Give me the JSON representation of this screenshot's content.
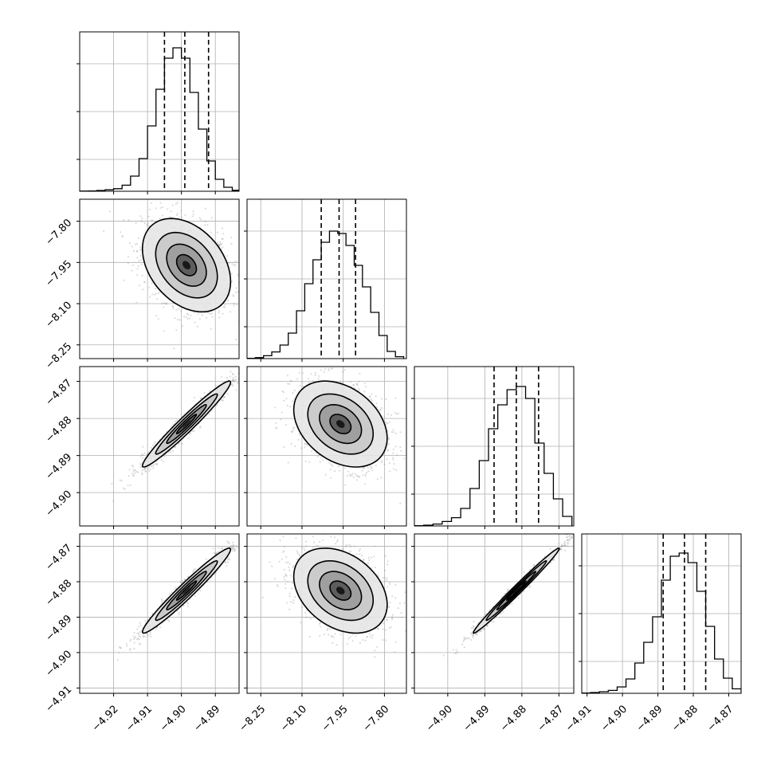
{
  "chart_data": {
    "type": "corner",
    "grid": true,
    "parameters": [
      {
        "lim": [
          -4.93,
          -4.883
        ],
        "ticks": [
          -4.92,
          -4.91,
          -4.9,
          -4.89
        ],
        "tick_labels": [
          "−4.92",
          "−4.91",
          "−4.90",
          "−4.89"
        ],
        "quantiles": [
          -4.905,
          -4.899,
          -4.892
        ]
      },
      {
        "lim": [
          -8.3,
          -7.72
        ],
        "ticks": [
          -8.25,
          -8.1,
          -7.95,
          -7.8
        ],
        "tick_labels": [
          "−8.25",
          "−8.10",
          "−7.95",
          "−7.80"
        ],
        "quantiles": [
          -8.03,
          -7.965,
          -7.905
        ]
      },
      {
        "lim": [
          -4.909,
          -4.866
        ],
        "ticks": [
          -4.9,
          -4.89,
          -4.88,
          -4.87
        ],
        "tick_labels": [
          "−4.90",
          "−4.89",
          "−4.88",
          "−4.87"
        ],
        "quantiles": [
          -4.8875,
          -4.8815,
          -4.8755
        ]
      },
      {
        "lim": [
          -4.9115,
          -4.8665
        ],
        "ticks": [
          -4.91,
          -4.9,
          -4.89,
          -4.88,
          -4.87
        ],
        "tick_labels": [
          "−4.91",
          "−4.90",
          "−4.89",
          "−4.88",
          "−4.87"
        ],
        "quantiles": [
          -4.8885,
          -4.8825,
          -4.8765
        ]
      }
    ],
    "histograms": [
      {
        "edges": [
          -4.93,
          -4.9275,
          -4.925,
          -4.9225,
          -4.92,
          -4.9175,
          -4.915,
          -4.9125,
          -4.91,
          -4.9075,
          -4.905,
          -4.9025,
          -4.9,
          -4.8975,
          -4.895,
          -4.8925,
          -4.89,
          -4.8875,
          -4.885,
          -4.883
        ],
        "counts": [
          1,
          2,
          5,
          9,
          16,
          38,
          95,
          205,
          410,
          640,
          835,
          900,
          835,
          620,
          390,
          190,
          75,
          25,
          6
        ],
        "ylim": [
          0,
          1000
        ]
      },
      {
        "edges": [
          -8.3,
          -8.27,
          -8.24,
          -8.21,
          -8.18,
          -8.15,
          -8.12,
          -8.09,
          -8.06,
          -8.03,
          -8.0,
          -7.97,
          -7.94,
          -7.91,
          -7.88,
          -7.85,
          -7.82,
          -7.79,
          -7.76,
          -7.73
        ],
        "counts": [
          2,
          6,
          18,
          42,
          85,
          160,
          300,
          470,
          620,
          730,
          800,
          785,
          710,
          585,
          450,
          290,
          145,
          45,
          12
        ],
        "ylim": [
          0,
          1000
        ]
      },
      {
        "edges": [
          -4.909,
          -4.9065,
          -4.904,
          -4.9015,
          -4.899,
          -4.8965,
          -4.894,
          -4.8915,
          -4.889,
          -4.8865,
          -4.884,
          -4.8815,
          -4.879,
          -4.8765,
          -4.874,
          -4.8715,
          -4.869,
          -4.8665
        ],
        "counts": [
          2,
          5,
          12,
          28,
          52,
          110,
          235,
          410,
          610,
          760,
          855,
          875,
          800,
          520,
          330,
          170,
          60
        ],
        "ylim": [
          0,
          1000
        ]
      },
      {
        "edges": [
          -4.9115,
          -4.909,
          -4.9065,
          -4.904,
          -4.9015,
          -4.899,
          -4.8965,
          -4.894,
          -4.8915,
          -4.889,
          -4.8865,
          -4.884,
          -4.8815,
          -4.879,
          -4.8765,
          -4.874,
          -4.8715,
          -4.869,
          -4.8665
        ],
        "counts": [
          2,
          5,
          10,
          18,
          40,
          90,
          190,
          320,
          480,
          710,
          860,
          880,
          820,
          640,
          420,
          215,
          95,
          28
        ],
        "ylim": [
          0,
          1000
        ]
      }
    ],
    "pairs": [
      {
        "x_param": 0,
        "y_param": 1,
        "mean": [
          -4.8985,
          -7.96
        ],
        "sd": [
          0.0065,
          0.085
        ],
        "corr": -0.35
      },
      {
        "x_param": 0,
        "y_param": 2,
        "mean": [
          -4.8985,
          -4.8815
        ],
        "sd": [
          0.0065,
          0.0058
        ],
        "corr": 0.97
      },
      {
        "x_param": 1,
        "y_param": 2,
        "mean": [
          -7.96,
          -4.8815
        ],
        "sd": [
          0.085,
          0.0058
        ],
        "corr": -0.33
      },
      {
        "x_param": 0,
        "y_param": 3,
        "mean": [
          -4.8985,
          -4.8825
        ],
        "sd": [
          0.0065,
          0.006
        ],
        "corr": 0.97
      },
      {
        "x_param": 1,
        "y_param": 3,
        "mean": [
          -7.96,
          -4.8825
        ],
        "sd": [
          0.085,
          0.006
        ],
        "corr": -0.33
      },
      {
        "x_param": 2,
        "y_param": 3,
        "mean": [
          -4.8815,
          -4.8825
        ],
        "sd": [
          0.0058,
          0.006
        ],
        "corr": 0.99
      }
    ]
  }
}
